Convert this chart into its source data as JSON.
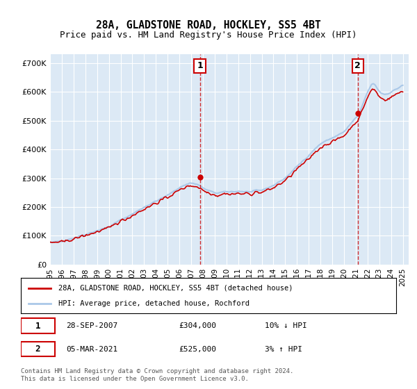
{
  "title": "28A, GLADSTONE ROAD, HOCKLEY, SS5 4BT",
  "subtitle": "Price paid vs. HM Land Registry's House Price Index (HPI)",
  "background_color": "#dce9f5",
  "plot_bg_color": "#dce9f5",
  "outer_bg_color": "#ffffff",
  "ylabel_ticks": [
    "£0",
    "£100K",
    "£200K",
    "£300K",
    "£400K",
    "£500K",
    "£600K",
    "£700K"
  ],
  "ytick_vals": [
    0,
    100000,
    200000,
    300000,
    400000,
    500000,
    600000,
    700000
  ],
  "ylim": [
    0,
    730000
  ],
  "xlim_start": 1995.0,
  "xlim_end": 2025.5,
  "line1_color": "#cc0000",
  "line2_color": "#aac8e8",
  "marker1_color": "#cc0000",
  "vline_color": "#cc0000",
  "annotation_box_color": "#cc0000",
  "legend_label1": "28A, GLADSTONE ROAD, HOCKLEY, SS5 4BT (detached house)",
  "legend_label2": "HPI: Average price, detached house, Rochford",
  "sale1_x": 2007.74,
  "sale1_y": 304000,
  "sale2_x": 2021.17,
  "sale2_y": 525000,
  "footnote": "Contains HM Land Registry data © Crown copyright and database right 2024.\nThis data is licensed under the Open Government Licence v3.0.",
  "table_row1": "1    28-SEP-2007         £304,000        10% ↓ HPI",
  "table_row2": "2    05-MAR-2021         £525,000          3% ↑ HPI",
  "xtick_years": [
    1995,
    1996,
    1997,
    1998,
    1999,
    2000,
    2001,
    2002,
    2003,
    2004,
    2005,
    2006,
    2007,
    2008,
    2009,
    2010,
    2011,
    2012,
    2013,
    2014,
    2015,
    2016,
    2017,
    2018,
    2019,
    2020,
    2021,
    2022,
    2023,
    2024,
    2025
  ]
}
